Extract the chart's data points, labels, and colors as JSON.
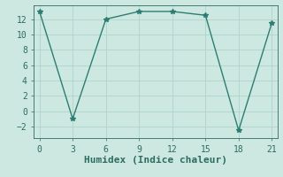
{
  "x": [
    0,
    3,
    6,
    9,
    12,
    15,
    18,
    21
  ],
  "y": [
    13,
    -1,
    12,
    13,
    13,
    12.5,
    -2.5,
    11.5
  ],
  "line_color": "#2e7d72",
  "marker": "*",
  "marker_size": 4,
  "xlabel": "Humidex (Indice chaleur)",
  "xlim": [
    -0.5,
    21.5
  ],
  "ylim": [
    -3.5,
    13.8
  ],
  "xticks": [
    0,
    3,
    6,
    9,
    12,
    15,
    18,
    21
  ],
  "yticks": [
    -2,
    0,
    2,
    4,
    6,
    8,
    10,
    12
  ],
  "bg_color": "#cce8e0",
  "grid_color": "#aed4cc",
  "font_color": "#2e6b60",
  "xlabel_fontsize": 8,
  "tick_fontsize": 7,
  "linewidth": 1.0
}
